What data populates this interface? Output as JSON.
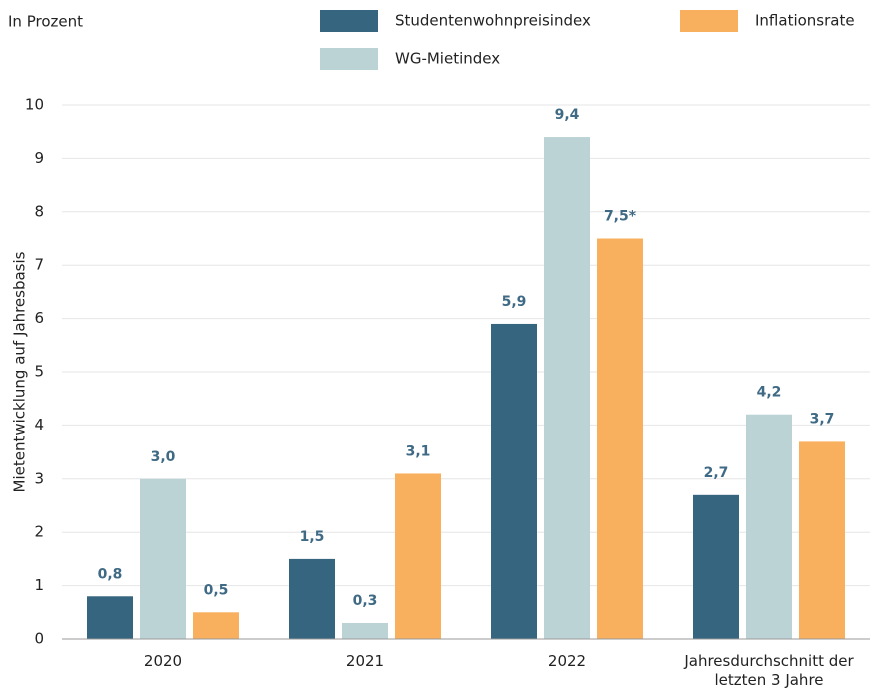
{
  "chart_data": {
    "type": "bar",
    "subtitle": "In Prozent",
    "y_label": "Mietentwicklung auf Jahresbasis",
    "categories": [
      "2020",
      "2021",
      "2022",
      "Jahresdurchschnitt der letzten 3 Jahre"
    ],
    "series": [
      {
        "name": "Studentenwohnpreisindex",
        "color": "#35657f",
        "values": [
          0.8,
          1.5,
          5.9,
          2.7
        ],
        "value_labels": [
          "0,8",
          "1,5",
          "5,9",
          "2,7"
        ]
      },
      {
        "name": "WG-Mietindex",
        "color": "#bcd3d6",
        "values": [
          3.0,
          0.3,
          9.4,
          4.2
        ],
        "value_labels": [
          "3,0",
          "0,3",
          "9,4",
          "4,2"
        ]
      },
      {
        "name": "Inflationsrate",
        "color": "#f8b05e",
        "values": [
          0.5,
          3.1,
          7.5,
          3.7
        ],
        "value_labels": [
          "0,5",
          "3,1",
          "7,5*",
          "3,7"
        ]
      }
    ],
    "ylim": [
      0,
      10
    ],
    "yticks": [
      0,
      1,
      2,
      3,
      4,
      5,
      6,
      7,
      8,
      9,
      10
    ],
    "grid": true
  }
}
